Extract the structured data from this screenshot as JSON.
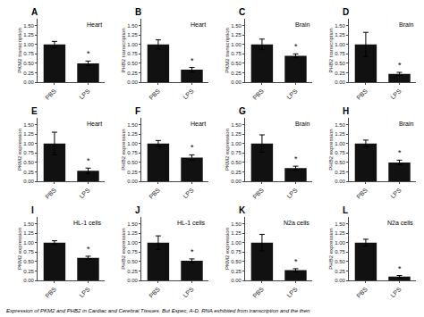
{
  "chart_data": [
    {
      "type": "bar",
      "title": "A",
      "ylabel": "PKM2 transcription",
      "categories": [
        "PBS",
        "LPS"
      ],
      "values": [
        1.0,
        0.5
      ],
      "errors": [
        0.08,
        0.06
      ],
      "color": "#111111",
      "annotations": [
        {
          "text": "Heart"
        },
        {
          "text": "*",
          "x": "LPS"
        }
      ],
      "ylim": [
        0,
        1.68
      ],
      "yticks": [
        {
          "value": 0.0,
          "label": "0.00"
        },
        {
          "value": 0.25,
          "label": "0.25"
        },
        {
          "value": 0.5,
          "label": "0.50"
        },
        {
          "value": 0.75,
          "label": "0.75"
        },
        {
          "value": 1.0,
          "label": "1.00"
        },
        {
          "value": 1.25,
          "label": "1.25"
        },
        {
          "value": 1.5,
          "label": "1.50"
        }
      ],
      "grid": false
    },
    {
      "type": "bar",
      "title": "B",
      "ylabel": "PHB2 transcription",
      "categories": [
        "PBS",
        "LPS"
      ],
      "values": [
        1.0,
        0.33
      ],
      "errors": [
        0.12,
        0.06
      ],
      "color": "#111111",
      "annotations": [
        {
          "text": "Heart"
        },
        {
          "text": "*",
          "x": "LPS"
        }
      ],
      "ylim": [
        0,
        1.68
      ],
      "yticks": [
        {
          "value": 0.0,
          "label": "0.00"
        },
        {
          "value": 0.25,
          "label": "0.25"
        },
        {
          "value": 0.5,
          "label": "0.50"
        },
        {
          "value": 0.75,
          "label": "0.75"
        },
        {
          "value": 1.0,
          "label": "1.00"
        },
        {
          "value": 1.25,
          "label": "1.25"
        },
        {
          "value": 1.5,
          "label": "1.50"
        }
      ],
      "grid": false
    },
    {
      "type": "bar",
      "title": "C",
      "ylabel": "PKM2 transcription",
      "categories": [
        "PBS",
        "LPS"
      ],
      "values": [
        1.0,
        0.7
      ],
      "errors": [
        0.14,
        0.05
      ],
      "color": "#111111",
      "annotations": [
        {
          "text": "Brain"
        },
        {
          "text": "*",
          "x": "LPS"
        }
      ],
      "ylim": [
        0,
        1.68
      ],
      "yticks": [
        {
          "value": 0.0,
          "label": "0.00"
        },
        {
          "value": 0.25,
          "label": "0.25"
        },
        {
          "value": 0.5,
          "label": "0.50"
        },
        {
          "value": 0.75,
          "label": "0.75"
        },
        {
          "value": 1.0,
          "label": "1.00"
        },
        {
          "value": 1.25,
          "label": "1.25"
        },
        {
          "value": 1.5,
          "label": "1.50"
        }
      ],
      "grid": false
    },
    {
      "type": "bar",
      "title": "D",
      "ylabel": "PHB2 transcription",
      "categories": [
        "PBS",
        "LPS"
      ],
      "values": [
        1.0,
        0.22
      ],
      "errors": [
        0.32,
        0.04
      ],
      "color": "#111111",
      "annotations": [
        {
          "text": "Brain"
        },
        {
          "text": "*",
          "x": "LPS"
        }
      ],
      "ylim": [
        0,
        1.68
      ],
      "yticks": [
        {
          "value": 0.0,
          "label": "0.00"
        },
        {
          "value": 0.25,
          "label": "0.25"
        },
        {
          "value": 0.5,
          "label": "0.50"
        },
        {
          "value": 0.75,
          "label": "0.75"
        },
        {
          "value": 1.0,
          "label": "1.00"
        },
        {
          "value": 1.25,
          "label": "1.25"
        },
        {
          "value": 1.5,
          "label": "1.50"
        }
      ],
      "grid": false
    },
    {
      "type": "bar",
      "title": "E",
      "ylabel": "PKM2 expression",
      "categories": [
        "PBS",
        "LPS"
      ],
      "values": [
        1.0,
        0.28
      ],
      "errors": [
        0.3,
        0.07
      ],
      "color": "#111111",
      "annotations": [
        {
          "text": "Heart"
        },
        {
          "text": "*",
          "x": "LPS"
        }
      ],
      "ylim": [
        0,
        1.68
      ],
      "yticks": [
        {
          "value": 0.0,
          "label": "0.00"
        },
        {
          "value": 0.25,
          "label": "0.25"
        },
        {
          "value": 0.5,
          "label": "0.50"
        },
        {
          "value": 0.75,
          "label": "0.75"
        },
        {
          "value": 1.0,
          "label": "1.00"
        },
        {
          "value": 1.25,
          "label": "1.25"
        },
        {
          "value": 1.5,
          "label": "1.50"
        }
      ],
      "grid": false
    },
    {
      "type": "bar",
      "title": "F",
      "ylabel": "PHB2 expression",
      "categories": [
        "PBS",
        "LPS"
      ],
      "values": [
        1.0,
        0.63
      ],
      "errors": [
        0.08,
        0.07
      ],
      "color": "#111111",
      "annotations": [
        {
          "text": "Heart"
        },
        {
          "text": "*",
          "x": "LPS"
        }
      ],
      "ylim": [
        0,
        1.68
      ],
      "yticks": [
        {
          "value": 0.0,
          "label": "0.00"
        },
        {
          "value": 0.25,
          "label": "0.25"
        },
        {
          "value": 0.5,
          "label": "0.50"
        },
        {
          "value": 0.75,
          "label": "0.75"
        },
        {
          "value": 1.0,
          "label": "1.00"
        },
        {
          "value": 1.25,
          "label": "1.25"
        },
        {
          "value": 1.5,
          "label": "1.50"
        }
      ],
      "grid": false
    },
    {
      "type": "bar",
      "title": "G",
      "ylabel": "PKM2 expression",
      "categories": [
        "PBS",
        "LPS"
      ],
      "values": [
        1.0,
        0.35
      ],
      "errors": [
        0.23,
        0.05
      ],
      "color": "#111111",
      "annotations": [
        {
          "text": "Brain"
        },
        {
          "text": "*",
          "x": "LPS"
        }
      ],
      "ylim": [
        0,
        1.68
      ],
      "yticks": [
        {
          "value": 0.0,
          "label": "0.00"
        },
        {
          "value": 0.25,
          "label": "0.25"
        },
        {
          "value": 0.5,
          "label": "0.50"
        },
        {
          "value": 0.75,
          "label": "0.75"
        },
        {
          "value": 1.0,
          "label": "1.00"
        },
        {
          "value": 1.25,
          "label": "1.25"
        },
        {
          "value": 1.5,
          "label": "1.50"
        }
      ],
      "grid": false
    },
    {
      "type": "bar",
      "title": "H",
      "ylabel": "PHB2 expression",
      "categories": [
        "PBS",
        "LPS"
      ],
      "values": [
        1.0,
        0.5
      ],
      "errors": [
        0.09,
        0.06
      ],
      "color": "#111111",
      "annotations": [
        {
          "text": "Brain"
        },
        {
          "text": "*",
          "x": "LPS"
        }
      ],
      "ylim": [
        0,
        1.68
      ],
      "yticks": [
        {
          "value": 0.0,
          "label": "0.00"
        },
        {
          "value": 0.25,
          "label": "0.25"
        },
        {
          "value": 0.5,
          "label": "0.50"
        },
        {
          "value": 0.75,
          "label": "0.75"
        },
        {
          "value": 1.0,
          "label": "1.00"
        },
        {
          "value": 1.25,
          "label": "1.25"
        },
        {
          "value": 1.5,
          "label": "1.50"
        }
      ],
      "grid": false
    },
    {
      "type": "bar",
      "title": "I",
      "ylabel": "PKM2 expression",
      "categories": [
        "PBS",
        "LPS"
      ],
      "values": [
        1.0,
        0.6
      ],
      "errors": [
        0.05,
        0.04
      ],
      "color": "#111111",
      "annotations": [
        {
          "text": "HL-1 cells"
        },
        {
          "text": "*",
          "x": "LPS"
        }
      ],
      "ylim": [
        0,
        1.68
      ],
      "yticks": [
        {
          "value": 0.0,
          "label": "0.00"
        },
        {
          "value": 0.25,
          "label": "0.25"
        },
        {
          "value": 0.5,
          "label": "0.50"
        },
        {
          "value": 0.75,
          "label": "0.75"
        },
        {
          "value": 1.0,
          "label": "1.00"
        },
        {
          "value": 1.25,
          "label": "1.25"
        },
        {
          "value": 1.5,
          "label": "1.50"
        }
      ],
      "grid": false
    },
    {
      "type": "bar",
      "title": "J",
      "ylabel": "PHB2 expression",
      "categories": [
        "PBS",
        "LPS"
      ],
      "values": [
        1.0,
        0.52
      ],
      "errors": [
        0.18,
        0.05
      ],
      "color": "#111111",
      "annotations": [
        {
          "text": "HL-1 cells"
        },
        {
          "text": "*",
          "x": "LPS"
        }
      ],
      "ylim": [
        0,
        1.68
      ],
      "yticks": [
        {
          "value": 0.0,
          "label": "0.00"
        },
        {
          "value": 0.25,
          "label": "0.25"
        },
        {
          "value": 0.5,
          "label": "0.50"
        },
        {
          "value": 0.75,
          "label": "0.75"
        },
        {
          "value": 1.0,
          "label": "1.00"
        },
        {
          "value": 1.25,
          "label": "1.25"
        },
        {
          "value": 1.5,
          "label": "1.50"
        }
      ],
      "grid": false
    },
    {
      "type": "bar",
      "title": "K",
      "ylabel": "PKM2 expression",
      "categories": [
        "PBS",
        "LPS"
      ],
      "values": [
        1.0,
        0.27
      ],
      "errors": [
        0.22,
        0.04
      ],
      "color": "#111111",
      "annotations": [
        {
          "text": "N2a cells"
        },
        {
          "text": "*",
          "x": "LPS"
        }
      ],
      "ylim": [
        0,
        1.68
      ],
      "yticks": [
        {
          "value": 0.0,
          "label": "0.00"
        },
        {
          "value": 0.25,
          "label": "0.25"
        },
        {
          "value": 0.5,
          "label": "0.50"
        },
        {
          "value": 0.75,
          "label": "0.75"
        },
        {
          "value": 1.0,
          "label": "1.00"
        },
        {
          "value": 1.25,
          "label": "1.25"
        },
        {
          "value": 1.5,
          "label": "1.50"
        }
      ],
      "grid": false
    },
    {
      "type": "bar",
      "title": "L",
      "ylabel": "PHB2 expression",
      "categories": [
        "PBS",
        "LPS"
      ],
      "values": [
        1.0,
        0.1
      ],
      "errors": [
        0.09,
        0.03
      ],
      "color": "#111111",
      "annotations": [
        {
          "text": "N2a cells"
        },
        {
          "text": "*",
          "x": "LPS"
        }
      ],
      "ylim": [
        0,
        1.68
      ],
      "yticks": [
        {
          "value": 0.0,
          "label": "0.00"
        },
        {
          "value": 0.25,
          "label": "0.25"
        },
        {
          "value": 0.5,
          "label": "0.50"
        },
        {
          "value": 0.75,
          "label": "0.75"
        },
        {
          "value": 1.0,
          "label": "1.00"
        },
        {
          "value": 1.25,
          "label": "1.25"
        },
        {
          "value": 1.5,
          "label": "1.50"
        }
      ],
      "grid": false
    }
  ],
  "caption": "Expression of PKM2 and PHB2 in Cardiac and Cerebral Tissues. But Espec, A-D. RNA exhibited from transcription and the then"
}
